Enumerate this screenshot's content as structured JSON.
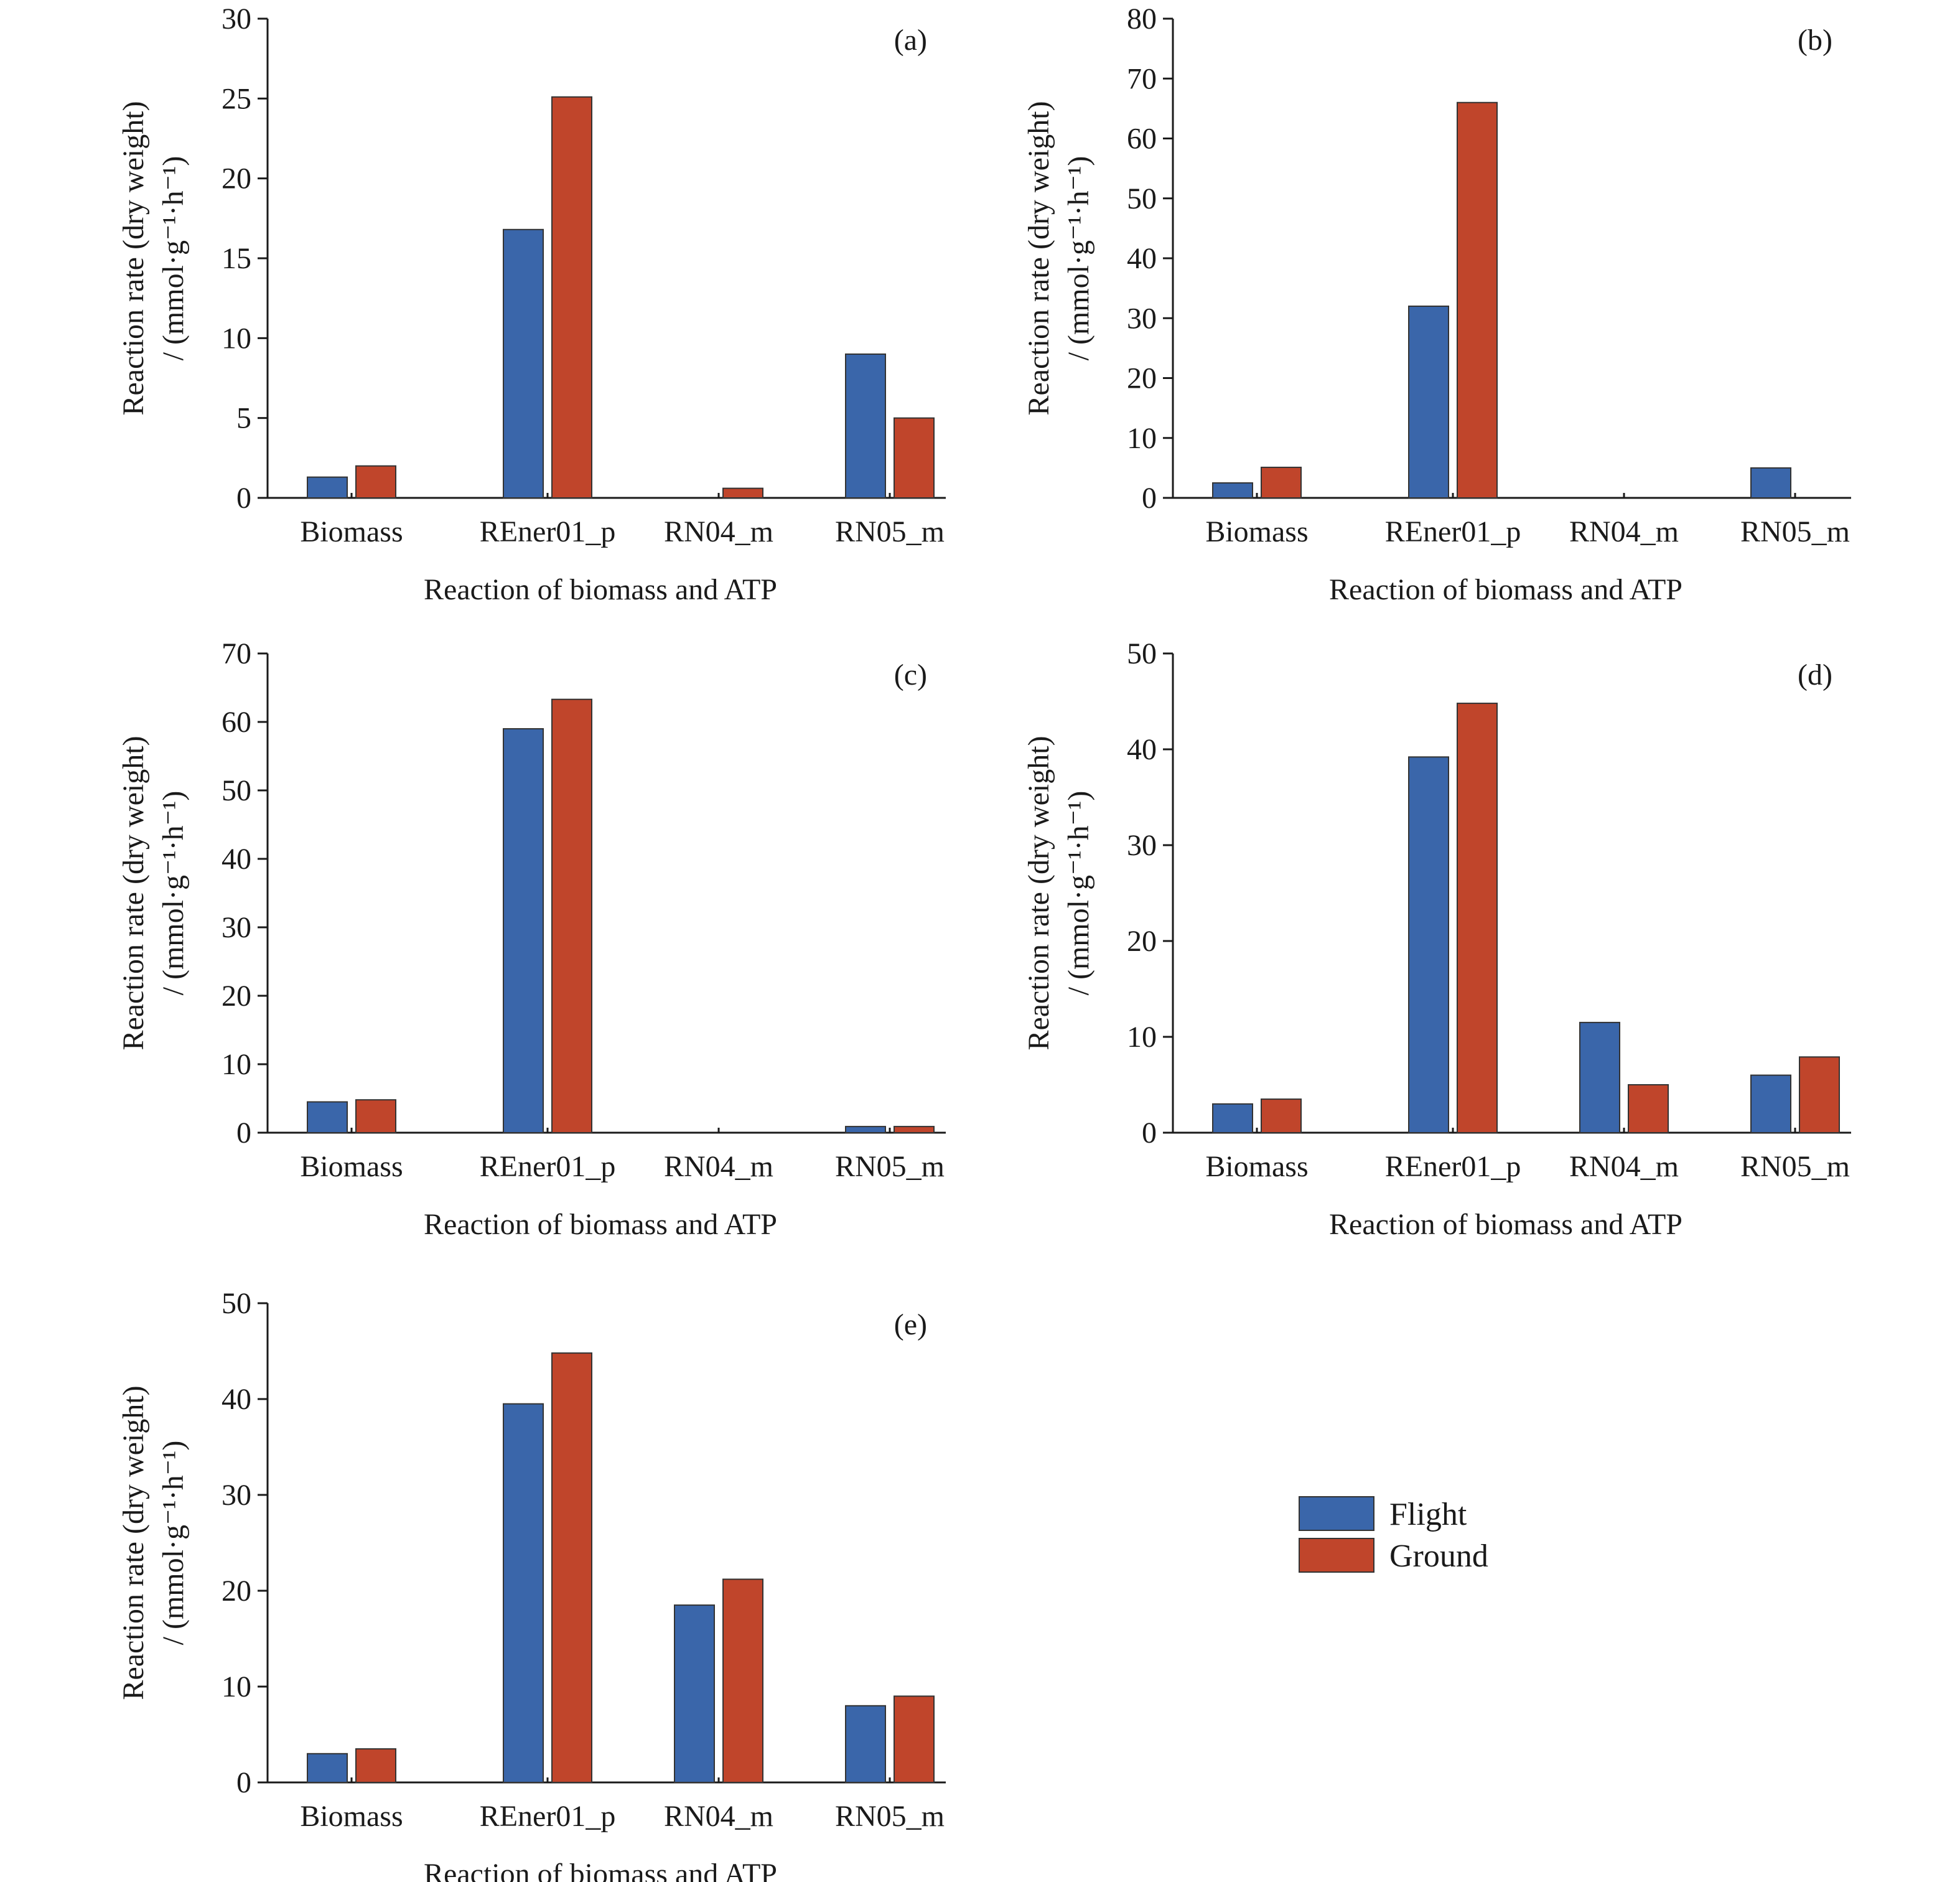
{
  "figure": {
    "legend": [
      {
        "label": "Flight",
        "color": "#3a66aa"
      },
      {
        "label": "Ground",
        "color": "#c0452b"
      }
    ],
    "colors": {
      "flight": "#3a66aa",
      "ground": "#c0452b",
      "bar_outline": "#333333",
      "axis": "#1a1a1a"
    }
  },
  "chart_data": [
    {
      "panel": "(a)",
      "type": "bar",
      "categories": [
        "Biomass",
        "REner01_p",
        "RN04_m",
        "RN05_m"
      ],
      "series": [
        {
          "name": "Flight",
          "values": [
            1.3,
            16.8,
            0,
            9.0
          ]
        },
        {
          "name": "Ground",
          "values": [
            2.0,
            25.1,
            0.6,
            5.0
          ]
        }
      ],
      "xlabel": "Reaction of biomass and ATP",
      "ylabel": "Reaction rate (dry weight)",
      "ylabel_units": "/ (mmol·g⁻¹·h⁻¹)",
      "ylim": [
        0,
        30
      ],
      "yticks": [
        0,
        5,
        10,
        15,
        20,
        25,
        30
      ],
      "grid": false,
      "legend": "separate, lower-right of figure"
    },
    {
      "panel": "(b)",
      "type": "bar",
      "categories": [
        "Biomass",
        "REner01_p",
        "RN04_m",
        "RN05_m"
      ],
      "series": [
        {
          "name": "Flight",
          "values": [
            2.5,
            32.0,
            0,
            5.0
          ]
        },
        {
          "name": "Ground",
          "values": [
            5.1,
            66.0,
            0,
            0
          ]
        }
      ],
      "xlabel": "Reaction of biomass and ATP",
      "ylabel": "Reaction rate (dry weight)",
      "ylabel_units": "/ (mmol·g⁻¹·h⁻¹)",
      "ylim": [
        0,
        80
      ],
      "yticks": [
        0,
        10,
        20,
        30,
        40,
        50,
        60,
        70,
        80
      ],
      "grid": false,
      "legend": "separate, lower-right of figure"
    },
    {
      "panel": "(c)",
      "type": "bar",
      "categories": [
        "Biomass",
        "REner01_p",
        "RN04_m",
        "RN05_m"
      ],
      "series": [
        {
          "name": "Flight",
          "values": [
            4.5,
            59.0,
            0,
            0.9
          ]
        },
        {
          "name": "Ground",
          "values": [
            4.8,
            63.3,
            0,
            0.9
          ]
        }
      ],
      "xlabel": "Reaction of biomass and ATP",
      "ylabel": "Reaction rate (dry weight)",
      "ylabel_units": "/ (mmol·g⁻¹·h⁻¹)",
      "ylim": [
        0,
        70
      ],
      "yticks": [
        0,
        10,
        20,
        30,
        40,
        50,
        60,
        70
      ],
      "grid": false,
      "legend": "separate, lower-right of figure"
    },
    {
      "panel": "(d)",
      "type": "bar",
      "categories": [
        "Biomass",
        "REner01_p",
        "RN04_m",
        "RN05_m"
      ],
      "series": [
        {
          "name": "Flight",
          "values": [
            3.0,
            39.2,
            11.5,
            6.0
          ]
        },
        {
          "name": "Ground",
          "values": [
            3.5,
            44.8,
            5.0,
            7.9
          ]
        }
      ],
      "xlabel": "Reaction of biomass and ATP",
      "ylabel": "Reaction rate (dry weight)",
      "ylabel_units": "/ (mmol·g⁻¹·h⁻¹)",
      "ylim": [
        0,
        50
      ],
      "yticks": [
        0,
        10,
        20,
        30,
        40,
        50
      ],
      "grid": false,
      "legend": "separate, lower-right of figure"
    },
    {
      "panel": "(e)",
      "type": "bar",
      "categories": [
        "Biomass",
        "REner01_p",
        "RN04_m",
        "RN05_m"
      ],
      "series": [
        {
          "name": "Flight",
          "values": [
            3.0,
            39.5,
            18.5,
            8.0
          ]
        },
        {
          "name": "Ground",
          "values": [
            3.5,
            44.8,
            21.2,
            9.0
          ]
        }
      ],
      "xlabel": "Reaction of biomass and ATP",
      "ylabel": "Reaction rate (dry weight)",
      "ylabel_units": "/ (mmol·g⁻¹·h⁻¹)",
      "ylim": [
        0,
        50
      ],
      "yticks": [
        0,
        10,
        20,
        30,
        40,
        50
      ],
      "grid": false,
      "legend": "separate, lower-right of figure"
    }
  ]
}
